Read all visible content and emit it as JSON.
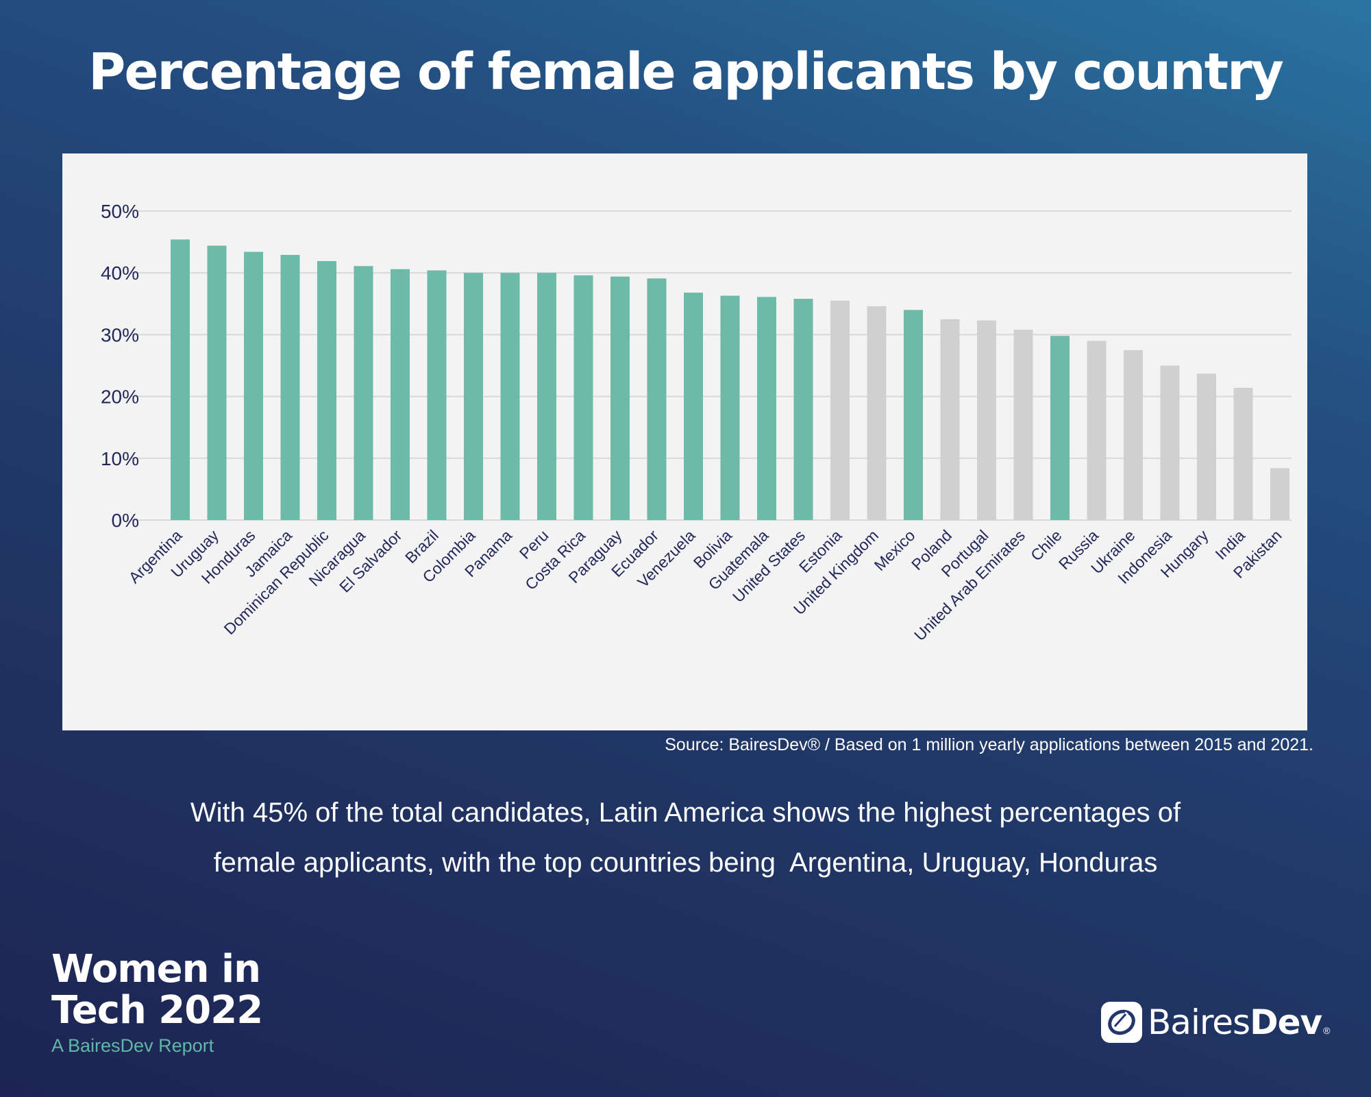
{
  "header": {
    "title": "Percentage of female applicants by country"
  },
  "chart_data": {
    "type": "bar",
    "title": "Percentage of female applicants by country",
    "xlabel": "",
    "ylabel": "",
    "ylim": [
      0,
      50
    ],
    "yticks": [
      0,
      10,
      20,
      30,
      40,
      50
    ],
    "ytick_labels": [
      "0%",
      "10%",
      "20%",
      "30%",
      "40%",
      "50%"
    ],
    "grid": true,
    "legend": "none",
    "unit": "%",
    "highlight_color": "#6dbaa9",
    "other_color": "#d0d0d0",
    "categories": [
      "Argentina",
      "Uruguay",
      "Honduras",
      "Jamaica",
      "Dominican Republic",
      "Nicaragua",
      "El Salvador",
      "Brazil",
      "Colombia",
      "Panama",
      "Peru",
      "Costa Rica",
      "Paraguay",
      "Ecuador",
      "Venezuela",
      "Bolivia",
      "Guatemala",
      "United States",
      "Estonia",
      "United Kingdom",
      "Mexico",
      "Poland",
      "Portugal",
      "United Arab Emirates",
      "Chile",
      "Russia",
      "Ukraine",
      "Indonesia",
      "Hungary",
      "India",
      "Pakistan"
    ],
    "values": [
      45.4,
      44.4,
      43.4,
      42.9,
      41.9,
      41.1,
      40.6,
      40.4,
      40.0,
      40.0,
      40.0,
      39.6,
      39.4,
      39.1,
      36.8,
      36.3,
      36.1,
      35.8,
      35.5,
      34.6,
      34.0,
      32.5,
      32.3,
      30.8,
      29.8,
      29.0,
      27.5,
      25.0,
      23.7,
      21.4,
      8.4
    ],
    "group": [
      "latam",
      "latam",
      "latam",
      "latam",
      "latam",
      "latam",
      "latam",
      "latam",
      "latam",
      "latam",
      "latam",
      "latam",
      "latam",
      "latam",
      "latam",
      "latam",
      "latam",
      "latam",
      "other",
      "other",
      "latam",
      "other",
      "other",
      "other",
      "latam",
      "other",
      "other",
      "other",
      "other",
      "other",
      "other"
    ]
  },
  "source": "Source: BairesDev® / Based on 1 million yearly applications between 2015 and 2021.",
  "summary": {
    "line1": "With 45% of the total candidates, Latin America shows the highest percentages of",
    "line2": "female applicants, with the top countries being  Argentina, Uruguay, Honduras"
  },
  "report": {
    "title_line1": "Women in",
    "title_line2": "Tech 2022",
    "subtitle": "A BairesDev Report"
  },
  "logo": {
    "name_regular": "Baires",
    "name_bold": "Dev",
    "registered": "®"
  }
}
